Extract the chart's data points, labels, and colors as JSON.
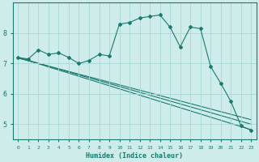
{
  "xlabel": "Humidex (Indice chaleur)",
  "bg_color": "#ceecea",
  "grid_color": "#a8d8d4",
  "line_color": "#1a7a6e",
  "xlim": [
    -0.5,
    23.5
  ],
  "ylim": [
    4.5,
    9.0
  ],
  "yticks": [
    5,
    6,
    7,
    8
  ],
  "xticks": [
    0,
    1,
    2,
    3,
    4,
    5,
    6,
    7,
    8,
    9,
    10,
    11,
    12,
    13,
    14,
    15,
    16,
    17,
    18,
    19,
    20,
    21,
    22,
    23
  ],
  "main_x": [
    0,
    1,
    2,
    3,
    4,
    5,
    6,
    7,
    8,
    9,
    10,
    11,
    12,
    13,
    14,
    15,
    16,
    17,
    18,
    19,
    20,
    21,
    22,
    23
  ],
  "main_y": [
    7.2,
    7.15,
    7.45,
    7.3,
    7.35,
    7.2,
    7.0,
    7.1,
    7.3,
    7.25,
    8.3,
    8.35,
    8.5,
    8.55,
    8.6,
    8.2,
    7.55,
    8.2,
    8.15,
    6.9,
    6.35,
    5.75,
    4.95,
    4.8
  ],
  "reg_lines": [
    {
      "x0": 0,
      "y0": 7.2,
      "x1": 23,
      "y1": 4.82
    },
    {
      "x0": 0,
      "y0": 7.2,
      "x1": 23,
      "y1": 5.0
    },
    {
      "x0": 0,
      "y0": 7.18,
      "x1": 23,
      "y1": 5.15
    }
  ]
}
